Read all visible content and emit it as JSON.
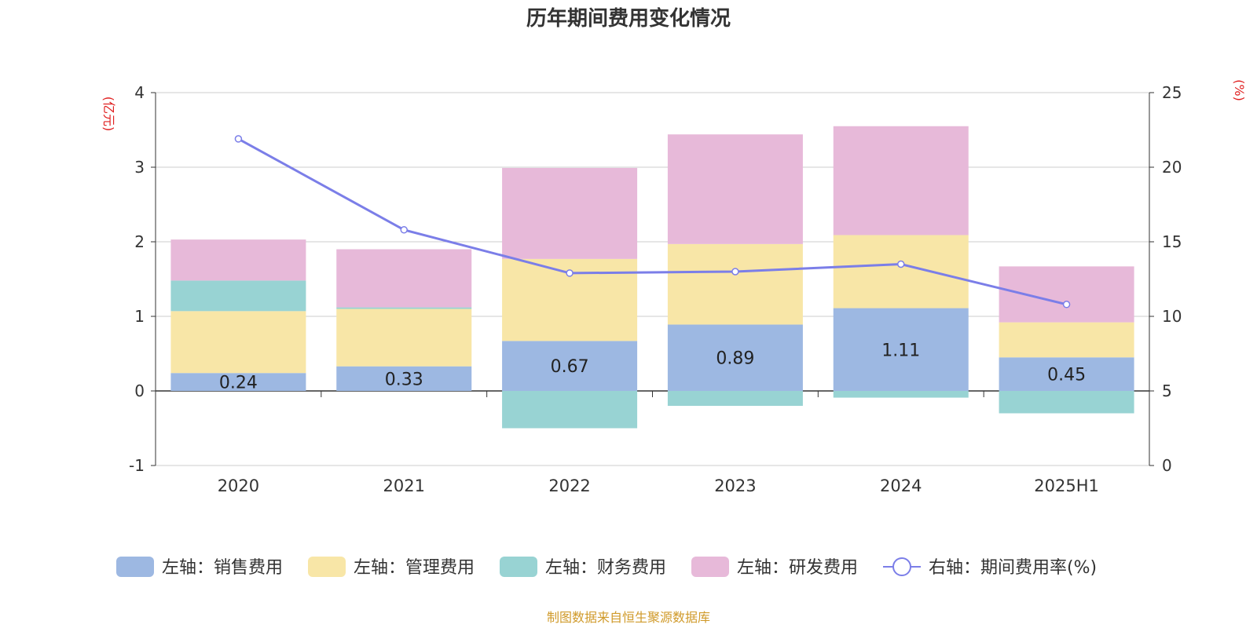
{
  "chart_data": {
    "type": "bar",
    "title": "历年期间费用变化情况",
    "left_unit": "(亿元)",
    "right_unit": "(%)",
    "categories": [
      "2020",
      "2021",
      "2022",
      "2023",
      "2024",
      "2025H1"
    ],
    "left_axis": {
      "min": -1,
      "max": 4,
      "ticks": [
        -1,
        0,
        1,
        2,
        3,
        4
      ]
    },
    "right_axis": {
      "min": 0,
      "max": 25,
      "ticks": [
        0,
        5,
        10,
        15,
        20,
        25
      ]
    },
    "series": [
      {
        "name": "左轴：销售费用",
        "axis": "left",
        "kind": "bar",
        "color": "#9db8e2",
        "values": [
          0.24,
          0.33,
          0.67,
          0.89,
          1.11,
          0.45
        ],
        "labels": [
          "0.24",
          "0.33",
          "0.67",
          "0.89",
          "1.11",
          "0.45"
        ]
      },
      {
        "name": "左轴：管理费用",
        "axis": "left",
        "kind": "bar",
        "color": "#f8e6a7",
        "values": [
          0.83,
          0.77,
          1.1,
          1.08,
          0.98,
          0.47
        ]
      },
      {
        "name": "左轴：财务费用",
        "axis": "left",
        "kind": "bar",
        "color": "#98d3d3",
        "values": [
          0.41,
          0.02,
          -0.5,
          -0.2,
          -0.09,
          -0.3
        ]
      },
      {
        "name": "左轴：研发费用",
        "axis": "left",
        "kind": "bar",
        "color": "#e7b9d9",
        "values": [
          0.55,
          0.78,
          1.22,
          1.47,
          1.46,
          0.75
        ]
      },
      {
        "name": "右轴：期间费用率(%)",
        "axis": "right",
        "kind": "line",
        "color": "#7b7ee8",
        "values": [
          21.9,
          15.8,
          12.9,
          13.0,
          13.5,
          10.8
        ]
      }
    ],
    "legend_position": "bottom",
    "grid": true
  },
  "source": "制图数据来自恒生聚源数据库"
}
